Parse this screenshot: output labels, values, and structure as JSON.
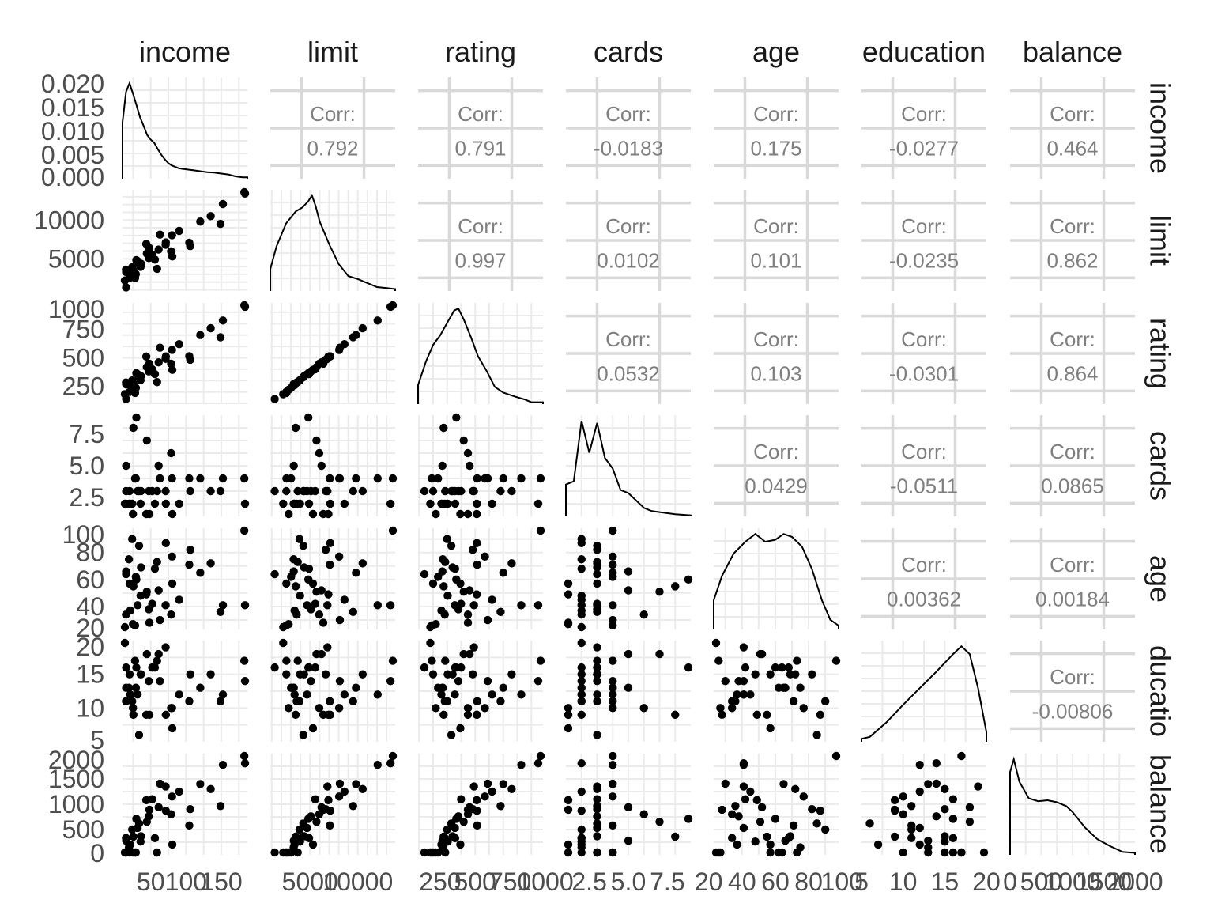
{
  "chart_data": {
    "type": "scatter",
    "variables": [
      "income",
      "limit",
      "rating",
      "cards",
      "age",
      "education",
      "balance"
    ],
    "row_strip_labels": [
      "income",
      "limit",
      "rating",
      "cards",
      "age",
      "ducatio",
      "balance"
    ],
    "x_tick_labels": [
      [
        "50",
        "100",
        "150"
      ],
      [
        "5000",
        "10000"
      ],
      [
        "250",
        "500",
        "750",
        "1000"
      ],
      [
        "2.5",
        "5.0",
        "7.5"
      ],
      [
        "20",
        "40",
        "60",
        "80",
        "100"
      ],
      [
        "5",
        "10",
        "15",
        "20"
      ],
      [
        "0",
        "500",
        "1000",
        "1500",
        "2000"
      ]
    ],
    "y_tick_labels": [
      [
        "0.000",
        "0.005",
        "0.010",
        "0.015",
        "0.020"
      ],
      [
        "5000",
        "10000"
      ],
      [
        "250",
        "500",
        "750",
        "1000"
      ],
      [
        "2.5",
        "5.0",
        "7.5"
      ],
      [
        "20",
        "40",
        "60",
        "80",
        "100"
      ],
      [
        "5",
        "10",
        "15",
        "20"
      ],
      [
        "0",
        "500",
        "1000",
        "1500",
        "2000"
      ]
    ],
    "corr_label": "Corr:",
    "correlations": [
      {
        "row": "income",
        "col": "limit",
        "value": "0.792"
      },
      {
        "row": "income",
        "col": "rating",
        "value": "0.791"
      },
      {
        "row": "income",
        "col": "cards",
        "value": "-0.0183"
      },
      {
        "row": "income",
        "col": "age",
        "value": "0.175"
      },
      {
        "row": "income",
        "col": "education",
        "value": "-0.0277"
      },
      {
        "row": "income",
        "col": "balance",
        "value": "0.464"
      },
      {
        "row": "limit",
        "col": "rating",
        "value": "0.997"
      },
      {
        "row": "limit",
        "col": "cards",
        "value": "0.0102"
      },
      {
        "row": "limit",
        "col": "age",
        "value": "0.101"
      },
      {
        "row": "limit",
        "col": "education",
        "value": "-0.0235"
      },
      {
        "row": "limit",
        "col": "balance",
        "value": "0.862"
      },
      {
        "row": "rating",
        "col": "cards",
        "value": "0.0532"
      },
      {
        "row": "rating",
        "col": "age",
        "value": "0.103"
      },
      {
        "row": "rating",
        "col": "education",
        "value": "-0.0301"
      },
      {
        "row": "rating",
        "col": "balance",
        "value": "0.864"
      },
      {
        "row": "cards",
        "col": "age",
        "value": "0.0429"
      },
      {
        "row": "cards",
        "col": "education",
        "value": "-0.0511"
      },
      {
        "row": "cards",
        "col": "balance",
        "value": "0.0865"
      },
      {
        "row": "age",
        "col": "education",
        "value": "0.00362"
      },
      {
        "row": "age",
        "col": "balance",
        "value": "0.00184"
      },
      {
        "row": "education",
        "col": "balance",
        "value": "-0.00806"
      }
    ],
    "ranges": {
      "income": [
        10,
        187
      ],
      "limit": [
        850,
        13900
      ],
      "rating": [
        93,
        983
      ],
      "cards": [
        1,
        9
      ],
      "age": [
        23,
        98
      ],
      "education": [
        5,
        20
      ],
      "balance": [
        0,
        2000
      ]
    },
    "densities": {
      "income": [
        [
          10,
          0.012
        ],
        [
          15,
          0.0185
        ],
        [
          20,
          0.0203
        ],
        [
          25,
          0.018
        ],
        [
          30,
          0.0155
        ],
        [
          35,
          0.013
        ],
        [
          40,
          0.0112
        ],
        [
          45,
          0.0093
        ],
        [
          50,
          0.0083
        ],
        [
          55,
          0.0076
        ],
        [
          60,
          0.0063
        ],
        [
          65,
          0.0051
        ],
        [
          70,
          0.0041
        ],
        [
          75,
          0.0033
        ],
        [
          80,
          0.0028
        ],
        [
          85,
          0.0025
        ],
        [
          90,
          0.0022
        ],
        [
          100,
          0.002
        ],
        [
          110,
          0.0018
        ],
        [
          120,
          0.0016
        ],
        [
          130,
          0.0014
        ],
        [
          140,
          0.0013
        ],
        [
          150,
          0.0011
        ],
        [
          160,
          0.0009
        ],
        [
          170,
          0.0005
        ],
        [
          180,
          0.0003
        ],
        [
          187,
          0.0003
        ]
      ],
      "limit": [
        [
          850,
          0.22
        ],
        [
          1500,
          0.45
        ],
        [
          2500,
          0.68
        ],
        [
          3500,
          0.8
        ],
        [
          4200,
          0.84
        ],
        [
          4800,
          0.9
        ],
        [
          5200,
          0.96
        ],
        [
          5600,
          0.85
        ],
        [
          6000,
          0.7
        ],
        [
          7000,
          0.47
        ],
        [
          8000,
          0.27
        ],
        [
          9000,
          0.15
        ],
        [
          10000,
          0.12
        ],
        [
          11000,
          0.08
        ],
        [
          12000,
          0.04
        ],
        [
          13000,
          0.03
        ],
        [
          13900,
          0.02
        ]
      ],
      "rating": [
        [
          93,
          0.2
        ],
        [
          150,
          0.45
        ],
        [
          200,
          0.62
        ],
        [
          250,
          0.72
        ],
        [
          300,
          0.85
        ],
        [
          350,
          0.98
        ],
        [
          380,
          1.0
        ],
        [
          420,
          0.88
        ],
        [
          470,
          0.7
        ],
        [
          520,
          0.5
        ],
        [
          580,
          0.35
        ],
        [
          640,
          0.18
        ],
        [
          700,
          0.12
        ],
        [
          780,
          0.08
        ],
        [
          850,
          0.05
        ],
        [
          900,
          0.02
        ],
        [
          983,
          0.02
        ]
      ],
      "cards": [
        [
          1,
          0.3
        ],
        [
          1.5,
          0.33
        ],
        [
          2,
          0.9
        ],
        [
          2.5,
          0.6
        ],
        [
          3,
          0.88
        ],
        [
          3.5,
          0.55
        ],
        [
          4,
          0.45
        ],
        [
          4.5,
          0.25
        ],
        [
          5,
          0.22
        ],
        [
          5.5,
          0.15
        ],
        [
          6,
          0.08
        ],
        [
          6.5,
          0.05
        ],
        [
          7,
          0.04
        ],
        [
          8,
          0.02
        ],
        [
          9,
          0.01
        ]
      ],
      "age": [
        [
          23,
          0.3
        ],
        [
          28,
          0.55
        ],
        [
          35,
          0.78
        ],
        [
          42,
          0.9
        ],
        [
          48,
          0.98
        ],
        [
          54,
          0.9
        ],
        [
          60,
          0.92
        ],
        [
          65,
          0.98
        ],
        [
          70,
          0.95
        ],
        [
          76,
          0.85
        ],
        [
          82,
          0.62
        ],
        [
          88,
          0.3
        ],
        [
          93,
          0.1
        ],
        [
          98,
          0.04
        ]
      ],
      "education": [
        [
          5,
          0.03
        ],
        [
          6,
          0.05
        ],
        [
          8,
          0.2
        ],
        [
          10,
          0.38
        ],
        [
          12,
          0.55
        ],
        [
          14,
          0.72
        ],
        [
          16,
          0.9
        ],
        [
          17,
          0.98
        ],
        [
          18,
          0.9
        ],
        [
          19,
          0.55
        ],
        [
          20,
          0.1
        ]
      ],
      "balance": [
        [
          0,
          0.85
        ],
        [
          60,
          0.98
        ],
        [
          150,
          0.75
        ],
        [
          300,
          0.58
        ],
        [
          450,
          0.55
        ],
        [
          600,
          0.56
        ],
        [
          750,
          0.54
        ],
        [
          900,
          0.5
        ],
        [
          1000,
          0.44
        ],
        [
          1200,
          0.28
        ],
        [
          1400,
          0.16
        ],
        [
          1600,
          0.09
        ],
        [
          1800,
          0.03
        ],
        [
          2000,
          0.02
        ]
      ]
    },
    "sample_points": [
      {
        "income": 14.9,
        "limit": 3606,
        "rating": 283,
        "cards": 2,
        "age": 34,
        "education": 11,
        "balance": 333
      },
      {
        "income": 106.0,
        "limit": 6645,
        "rating": 483,
        "cards": 3,
        "age": 82,
        "education": 15,
        "balance": 903
      },
      {
        "income": 104.6,
        "limit": 7075,
        "rating": 514,
        "cards": 4,
        "age": 71,
        "education": 11,
        "balance": 580
      },
      {
        "income": 148.9,
        "limit": 9504,
        "rating": 681,
        "cards": 3,
        "age": 36,
        "education": 11,
        "balance": 964
      },
      {
        "income": 55.9,
        "limit": 4897,
        "rating": 357,
        "cards": 2,
        "age": 68,
        "education": 16,
        "balance": 331
      },
      {
        "income": 80.2,
        "limit": 8047,
        "rating": 569,
        "cards": 4,
        "age": 77,
        "education": 10,
        "balance": 1151
      },
      {
        "income": 21.0,
        "limit": 3388,
        "rating": 259,
        "cards": 2,
        "age": 37,
        "education": 12,
        "balance": 203
      },
      {
        "income": 71.4,
        "limit": 7114,
        "rating": 512,
        "cards": 2,
        "age": 87,
        "education": 9,
        "balance": 872
      },
      {
        "income": 15.1,
        "limit": 3300,
        "rating": 266,
        "cards": 5,
        "age": 66,
        "education": 13,
        "balance": 279
      },
      {
        "income": 71.1,
        "limit": 6819,
        "rating": 491,
        "cards": 3,
        "age": 41,
        "education": 19,
        "balance": 1350
      },
      {
        "income": 63.1,
        "limit": 8117,
        "rating": 589,
        "cards": 4,
        "age": 30,
        "education": 14,
        "balance": 1407
      },
      {
        "income": 15.1,
        "limit": 1311,
        "rating": 138,
        "cards": 3,
        "age": 64,
        "education": 16,
        "balance": 0
      },
      {
        "income": 80.6,
        "limit": 5308,
        "rating": 394,
        "cards": 1,
        "age": 57,
        "education": 7,
        "balance": 204
      },
      {
        "income": 43.7,
        "limit": 6922,
        "rating": 511,
        "cards": 1,
        "age": 49,
        "education": 9,
        "balance": 1081
      },
      {
        "income": 19.1,
        "limit": 3291,
        "rating": 269,
        "cards": 2,
        "age": 75,
        "education": 13,
        "balance": 148
      },
      {
        "income": 20.1,
        "limit": 2525,
        "rating": 200,
        "cards": 3,
        "age": 57,
        "education": 15,
        "balance": 0
      },
      {
        "income": 59.0,
        "limit": 3714,
        "rating": 286,
        "cards": 3,
        "age": 73,
        "education": 17,
        "balance": 0
      },
      {
        "income": 36.2,
        "limit": 4378,
        "rating": 339,
        "cards": 3,
        "age": 69,
        "education": 15,
        "balance": 368
      },
      {
        "income": 48.1,
        "limit": 6384,
        "rating": 448,
        "cards": 1,
        "age": 28,
        "education": 9,
        "balance": 891
      },
      {
        "income": 24.8,
        "limit": 2768,
        "rating": 219,
        "cards": 1,
        "age": 27,
        "education": 10,
        "balance": 0
      },
      {
        "income": 52.1,
        "limit": 5541,
        "rating": 399,
        "cards": 3,
        "age": 42,
        "education": 16,
        "balance": 1099
      },
      {
        "income": 78.9,
        "limit": 5963,
        "rating": 448,
        "cards": 6,
        "age": 34,
        "education": 10,
        "balance": 802
      },
      {
        "income": 35.6,
        "limit": 3961,
        "rating": 304,
        "cards": 2,
        "age": 48,
        "education": 15,
        "balance": 263
      },
      {
        "income": 31.4,
        "limit": 4692,
        "rating": 355,
        "cards": 3,
        "age": 41,
        "education": 12,
        "balance": 532
      },
      {
        "income": 28.9,
        "limit": 3020,
        "rating": 235,
        "cards": 4,
        "age": 62,
        "education": 13,
        "balance": 0
      },
      {
        "income": 182.7,
        "limit": 13913,
        "rating": 982,
        "cards": 4,
        "age": 98,
        "education": 17,
        "balance": 1999
      },
      {
        "income": 186.6,
        "limit": 13414,
        "rating": 949,
        "cards": 2,
        "age": 41,
        "education": 14,
        "balance": 1809
      },
      {
        "income": 152.3,
        "limit": 12066,
        "rating": 828,
        "cards": 4,
        "age": 41,
        "education": 12,
        "balance": 1779
      },
      {
        "income": 27.8,
        "limit": 2531,
        "rating": 191,
        "cards": 4,
        "age": 26,
        "education": 17,
        "balance": 0
      },
      {
        "income": 29.6,
        "limit": 4828,
        "rating": 365,
        "cards": 9,
        "age": 60,
        "education": 16,
        "balance": 712
      },
      {
        "income": 44.5,
        "limit": 5675,
        "rating": 418,
        "cards": 7,
        "age": 51,
        "education": 18,
        "balance": 654
      },
      {
        "income": 120.2,
        "limit": 9800,
        "rating": 700,
        "cards": 4,
        "age": 65,
        "education": 13,
        "balance": 1400
      },
      {
        "income": 90.3,
        "limit": 8600,
        "rating": 620,
        "cards": 2,
        "age": 45,
        "education": 12,
        "balance": 1250
      },
      {
        "income": 33.5,
        "limit": 4300,
        "rating": 330,
        "cards": 3,
        "age": 85,
        "education": 6,
        "balance": 620
      },
      {
        "income": 61.2,
        "limit": 6200,
        "rating": 460,
        "cards": 5,
        "age": 52,
        "education": 18,
        "balance": 940
      },
      {
        "income": 25.4,
        "limit": 3500,
        "rating": 275,
        "cards": 8,
        "age": 55,
        "education": 9,
        "balance": 360
      },
      {
        "income": 12.0,
        "limit": 2200,
        "rating": 180,
        "cards": 2,
        "age": 24,
        "education": 20,
        "balance": 0
      },
      {
        "income": 47.3,
        "limit": 5100,
        "rating": 380,
        "cards": 3,
        "age": 38,
        "education": 14,
        "balance": 760
      },
      {
        "income": 135.0,
        "limit": 10500,
        "rating": 760,
        "cards": 3,
        "age": 72,
        "education": 15,
        "balance": 1300
      },
      {
        "income": 23.7,
        "limit": 3900,
        "rating": 300,
        "cards": 2,
        "age": 90,
        "education": 11,
        "balance": 500
      }
    ]
  }
}
